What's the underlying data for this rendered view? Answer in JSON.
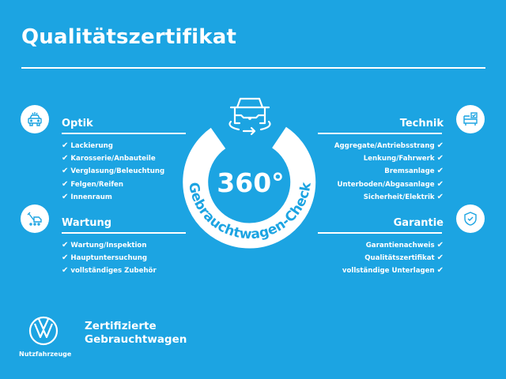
{
  "title": "Qualitätszertifikat",
  "colors": {
    "background": "#1ca4e2",
    "foreground": "#ffffff"
  },
  "sections": {
    "optik": {
      "title": "Optik",
      "icon": "car-front-icon",
      "items": [
        "Lackierung",
        "Karosserie/Anbauteile",
        "Verglasung/Beleuchtung",
        "Felgen/Reifen",
        "Innenraum"
      ]
    },
    "wartung": {
      "title": "Wartung",
      "icon": "service-tools-icon",
      "items": [
        "Wartung/Inspektion",
        "Hauptuntersuchung",
        "vollständiges Zubehör"
      ]
    },
    "technik": {
      "title": "Technik",
      "icon": "checklist-car-icon",
      "items": [
        "Aggregate/Antriebsstrang",
        "Lenkung/Fahrwerk",
        "Bremsanlage",
        "Unterboden/Abgasanlage",
        "Sicherheit/Elektrik"
      ]
    },
    "garantie": {
      "title": "Garantie",
      "icon": "shield-check-icon",
      "items": [
        "Garantienachweis",
        "Qualitätszertifikat",
        "vollständige Unterlagen"
      ]
    }
  },
  "check_mark": "✔",
  "badge": {
    "number": "360°",
    "label": "Gebrauchtwagen-Check",
    "icon": "car-rotate-icon"
  },
  "footer": {
    "claim_line1": "Zertifizierte",
    "claim_line2": "Gebrauchtwagen",
    "brand": "Nutzfahrzeuge",
    "logo": "vw-logo"
  }
}
